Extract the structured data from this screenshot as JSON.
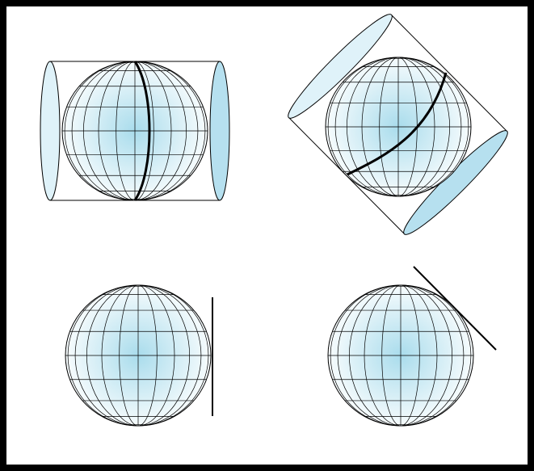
{
  "figure": {
    "frame_color": "#000000",
    "background_color": "#ffffff",
    "panels": [
      {
        "id": "normal-cylindrical",
        "surface": "cylinder",
        "aspect": "normal",
        "contact": "meridian-line"
      },
      {
        "id": "oblique-cylindrical",
        "surface": "cylinder",
        "aspect": "oblique",
        "contact": "great-circle-line"
      },
      {
        "id": "normal-tangent-plane",
        "surface": "plane",
        "aspect": "normal"
      },
      {
        "id": "oblique-tangent-plane",
        "surface": "plane",
        "aspect": "oblique"
      }
    ],
    "colors": {
      "globe_center": "#a9dcec",
      "globe_edge": "#ffffff",
      "graticule": "#000000",
      "cylinder_end_light": "#dff2f9",
      "cylinder_end_dark": "#b6e0ef",
      "outline": "#000000"
    }
  }
}
